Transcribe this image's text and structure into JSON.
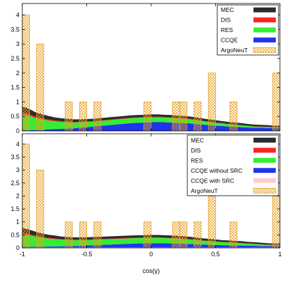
{
  "colors": {
    "MEC": "#2b2b2b",
    "DIS": "#ff2222",
    "RES": "#33ee33",
    "CCQE": "#2233ee",
    "CCQE_with_SRC": "#ffcccc",
    "ArgoNeuT": "#e8a020"
  },
  "chart_data": [
    {
      "type": "area",
      "stacked": true,
      "xlim": [
        -1,
        1
      ],
      "ylim": [
        0,
        4.4
      ],
      "xticks": [
        "-1",
        "-0.5",
        "0",
        "0.5",
        "1"
      ],
      "yticks": [
        "0",
        "0.5",
        "1",
        "1.5",
        "2",
        "2.5",
        "3",
        "3.5",
        "4"
      ],
      "xlabel": "",
      "legend_position": "top-right",
      "x": [
        -1,
        -0.95,
        -0.9,
        -0.85,
        -0.8,
        -0.75,
        -0.7,
        -0.65,
        -0.6,
        -0.55,
        -0.5,
        -0.45,
        -0.4,
        -0.35,
        -0.3,
        -0.25,
        -0.2,
        -0.15,
        -0.1,
        -0.05,
        0,
        0.05,
        0.1,
        0.15,
        0.2,
        0.25,
        0.3,
        0.35,
        0.4,
        0.45,
        0.5,
        0.55,
        0.6,
        0.65,
        0.7,
        0.75,
        0.8,
        0.85,
        0.9,
        0.95,
        1
      ],
      "series": [
        {
          "name": "CCQE",
          "key": "CCQE",
          "values": [
            0.02,
            0.03,
            0.03,
            0.04,
            0.05,
            0.06,
            0.07,
            0.08,
            0.09,
            0.11,
            0.13,
            0.15,
            0.17,
            0.19,
            0.21,
            0.23,
            0.25,
            0.27,
            0.28,
            0.29,
            0.3,
            0.3,
            0.3,
            0.29,
            0.28,
            0.27,
            0.26,
            0.24,
            0.22,
            0.2,
            0.18,
            0.17,
            0.15,
            0.14,
            0.13,
            0.12,
            0.11,
            0.11,
            0.1,
            0.1,
            0.1
          ]
        },
        {
          "name": "RES",
          "key": "RES",
          "values": [
            0.55,
            0.5,
            0.42,
            0.36,
            0.31,
            0.27,
            0.24,
            0.22,
            0.2,
            0.19,
            0.18,
            0.17,
            0.17,
            0.17,
            0.17,
            0.17,
            0.17,
            0.17,
            0.17,
            0.17,
            0.17,
            0.17,
            0.16,
            0.16,
            0.15,
            0.15,
            0.14,
            0.13,
            0.12,
            0.11,
            0.1,
            0.09,
            0.08,
            0.07,
            0.06,
            0.05,
            0.04,
            0.03,
            0.03,
            0.02,
            0.02
          ]
        },
        {
          "name": "DIS",
          "key": "DIS",
          "values": [
            0.07,
            0.06,
            0.05,
            0.04,
            0.04,
            0.03,
            0.03,
            0.03,
            0.02,
            0.02,
            0.02,
            0.02,
            0.02,
            0.02,
            0.02,
            0.02,
            0.02,
            0.02,
            0.02,
            0.02,
            0.02,
            0.02,
            0.02,
            0.02,
            0.02,
            0.02,
            0.02,
            0.02,
            0.01,
            0.01,
            0.01,
            0.01,
            0.01,
            0.01,
            0.01,
            0.01,
            0.01,
            0.01,
            0.01,
            0.01,
            0.01
          ]
        },
        {
          "name": "MEC",
          "key": "MEC",
          "values": [
            0.21,
            0.18,
            0.15,
            0.14,
            0.12,
            0.11,
            0.1,
            0.09,
            0.09,
            0.08,
            0.08,
            0.08,
            0.08,
            0.08,
            0.08,
            0.08,
            0.08,
            0.08,
            0.08,
            0.08,
            0.08,
            0.08,
            0.08,
            0.08,
            0.08,
            0.08,
            0.08,
            0.08,
            0.08,
            0.08,
            0.08,
            0.07,
            0.07,
            0.07,
            0.07,
            0.06,
            0.06,
            0.06,
            0.06,
            0.05,
            0.05
          ]
        }
      ],
      "argoneut": {
        "name": "ArgoNeuT",
        "bin_width": 0.0556,
        "bins": [
          {
            "x": -0.972,
            "y": 4
          },
          {
            "x": -0.861,
            "y": 3
          },
          {
            "x": -0.639,
            "y": 1
          },
          {
            "x": -0.528,
            "y": 1
          },
          {
            "x": -0.417,
            "y": 1
          },
          {
            "x": -0.028,
            "y": 1
          },
          {
            "x": 0.194,
            "y": 1
          },
          {
            "x": 0.25,
            "y": 1
          },
          {
            "x": 0.361,
            "y": 1
          },
          {
            "x": 0.472,
            "y": 2
          },
          {
            "x": 0.639,
            "y": 1
          },
          {
            "x": 0.972,
            "y": 2
          }
        ]
      },
      "legend": [
        {
          "label": "MEC",
          "key": "MEC"
        },
        {
          "label": "DIS",
          "key": "DIS"
        },
        {
          "label": "RES",
          "key": "RES"
        },
        {
          "label": "CCQE",
          "key": "CCQE"
        },
        {
          "label": "ArgoNeuT",
          "key": "ArgoNeuT"
        }
      ]
    },
    {
      "type": "area",
      "stacked": true,
      "xlim": [
        -1,
        1
      ],
      "ylim": [
        0,
        4.4
      ],
      "xticks": [
        "-1",
        "-0.5",
        "0",
        "0.5",
        "1"
      ],
      "yticks": [
        "0",
        "0.5",
        "1",
        "1.5",
        "2",
        "2.5",
        "3",
        "3.5",
        "4"
      ],
      "xlabel": "cos(γ)",
      "legend_position": "top-right",
      "x": [
        -1,
        -0.95,
        -0.9,
        -0.85,
        -0.8,
        -0.75,
        -0.7,
        -0.65,
        -0.6,
        -0.55,
        -0.5,
        -0.45,
        -0.4,
        -0.35,
        -0.3,
        -0.25,
        -0.2,
        -0.15,
        -0.1,
        -0.05,
        0,
        0.05,
        0.1,
        0.15,
        0.2,
        0.25,
        0.3,
        0.35,
        0.4,
        0.45,
        0.5,
        0.55,
        0.6,
        0.65,
        0.7,
        0.75,
        0.8,
        0.85,
        0.9,
        0.95,
        1
      ],
      "series": [
        {
          "name": "CCQE with SRC",
          "key": "CCQE_with_SRC",
          "values": [
            0.02,
            0.02,
            0.02,
            0.02,
            0.02,
            0.02,
            0.02,
            0.02,
            0.02,
            0.02,
            0.02,
            0.02,
            0.02,
            0.02,
            0.02,
            0.02,
            0.02,
            0.02,
            0.02,
            0.02,
            0.02,
            0.02,
            0.02,
            0.02,
            0.02,
            0.02,
            0.02,
            0.02,
            0.02,
            0.02,
            0.02,
            0.02,
            0.02,
            0.02,
            0.02,
            0.02,
            0.02,
            0.02,
            0.02,
            0.02,
            0.02
          ]
        },
        {
          "name": "CCQE without SRC",
          "key": "CCQE",
          "values": [
            0.02,
            0.02,
            0.02,
            0.03,
            0.03,
            0.04,
            0.04,
            0.05,
            0.05,
            0.06,
            0.07,
            0.08,
            0.09,
            0.1,
            0.11,
            0.12,
            0.13,
            0.14,
            0.15,
            0.15,
            0.16,
            0.16,
            0.16,
            0.15,
            0.15,
            0.14,
            0.13,
            0.12,
            0.11,
            0.1,
            0.09,
            0.08,
            0.08,
            0.07,
            0.07,
            0.06,
            0.06,
            0.05,
            0.05,
            0.05,
            0.05
          ]
        },
        {
          "name": "RES",
          "key": "RES",
          "values": [
            0.48,
            0.45,
            0.4,
            0.35,
            0.31,
            0.28,
            0.26,
            0.24,
            0.23,
            0.22,
            0.21,
            0.21,
            0.21,
            0.21,
            0.21,
            0.21,
            0.21,
            0.21,
            0.21,
            0.21,
            0.21,
            0.21,
            0.2,
            0.2,
            0.19,
            0.18,
            0.17,
            0.16,
            0.15,
            0.14,
            0.13,
            0.12,
            0.11,
            0.1,
            0.09,
            0.08,
            0.07,
            0.06,
            0.05,
            0.04,
            0.04
          ]
        },
        {
          "name": "DIS",
          "key": "DIS",
          "values": [
            0.05,
            0.04,
            0.04,
            0.03,
            0.03,
            0.03,
            0.02,
            0.02,
            0.02,
            0.02,
            0.02,
            0.02,
            0.02,
            0.02,
            0.02,
            0.02,
            0.02,
            0.02,
            0.02,
            0.02,
            0.02,
            0.02,
            0.02,
            0.02,
            0.02,
            0.02,
            0.02,
            0.02,
            0.01,
            0.01,
            0.01,
            0.01,
            0.01,
            0.01,
            0.01,
            0.01,
            0.01,
            0.01,
            0.01,
            0.01,
            0.01
          ]
        },
        {
          "name": "MEC",
          "key": "MEC",
          "values": [
            0.2,
            0.18,
            0.15,
            0.13,
            0.12,
            0.11,
            0.1,
            0.09,
            0.09,
            0.09,
            0.09,
            0.09,
            0.09,
            0.09,
            0.09,
            0.09,
            0.09,
            0.09,
            0.09,
            0.09,
            0.09,
            0.09,
            0.09,
            0.09,
            0.09,
            0.09,
            0.09,
            0.08,
            0.08,
            0.08,
            0.08,
            0.07,
            0.07,
            0.07,
            0.07,
            0.06,
            0.06,
            0.06,
            0.05,
            0.05,
            0.05
          ]
        }
      ],
      "argoneut": {
        "name": "ArgoNeuT",
        "bin_width": 0.0556,
        "bins": [
          {
            "x": -0.972,
            "y": 4
          },
          {
            "x": -0.861,
            "y": 3
          },
          {
            "x": -0.639,
            "y": 1
          },
          {
            "x": -0.528,
            "y": 1
          },
          {
            "x": -0.417,
            "y": 1
          },
          {
            "x": -0.028,
            "y": 1
          },
          {
            "x": 0.194,
            "y": 1
          },
          {
            "x": 0.25,
            "y": 1
          },
          {
            "x": 0.361,
            "y": 1
          },
          {
            "x": 0.472,
            "y": 2
          },
          {
            "x": 0.639,
            "y": 1
          },
          {
            "x": 0.972,
            "y": 2
          }
        ]
      },
      "legend": [
        {
          "label": "MEC",
          "key": "MEC"
        },
        {
          "label": "DIS",
          "key": "DIS"
        },
        {
          "label": "RES",
          "key": "RES"
        },
        {
          "label": "CCQE without SRC",
          "key": "CCQE"
        },
        {
          "label": "CCQE with SRC",
          "key": "CCQE_with_SRC"
        },
        {
          "label": "ArgoNeuT",
          "key": "ArgoNeuT"
        }
      ]
    }
  ]
}
